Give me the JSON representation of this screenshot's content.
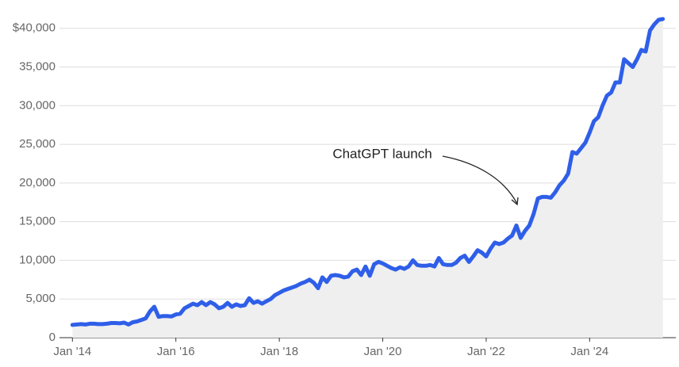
{
  "chart_data": {
    "type": "line",
    "annotation": "ChatGPT launch",
    "x": [
      "2014-01",
      "2014-02",
      "2014-03",
      "2014-04",
      "2014-05",
      "2014-06",
      "2014-07",
      "2014-08",
      "2014-09",
      "2014-10",
      "2014-11",
      "2014-12",
      "2015-01",
      "2015-02",
      "2015-03",
      "2015-04",
      "2015-05",
      "2015-06",
      "2015-07",
      "2015-08",
      "2015-09",
      "2015-10",
      "2015-11",
      "2015-12",
      "2016-01",
      "2016-02",
      "2016-03",
      "2016-04",
      "2016-05",
      "2016-06",
      "2016-07",
      "2016-08",
      "2016-09",
      "2016-10",
      "2016-11",
      "2016-12",
      "2017-01",
      "2017-02",
      "2017-03",
      "2017-04",
      "2017-05",
      "2017-06",
      "2017-07",
      "2017-08",
      "2017-09",
      "2017-10",
      "2017-11",
      "2017-12",
      "2018-01",
      "2018-02",
      "2018-03",
      "2018-04",
      "2018-05",
      "2018-06",
      "2018-07",
      "2018-08",
      "2018-09",
      "2018-10",
      "2018-11",
      "2018-12",
      "2019-01",
      "2019-02",
      "2019-03",
      "2019-04",
      "2019-05",
      "2019-06",
      "2019-07",
      "2019-08",
      "2019-09",
      "2019-10",
      "2019-11",
      "2019-12",
      "2020-01",
      "2020-02",
      "2020-03",
      "2020-04",
      "2020-05",
      "2020-06",
      "2020-07",
      "2020-08",
      "2020-09",
      "2020-10",
      "2020-11",
      "2020-12",
      "2021-01",
      "2021-02",
      "2021-03",
      "2021-04",
      "2021-05",
      "2021-06",
      "2021-07",
      "2021-08",
      "2021-09",
      "2021-10",
      "2021-11",
      "2021-12",
      "2022-01",
      "2022-02",
      "2022-03",
      "2022-04",
      "2022-05",
      "2022-06",
      "2022-07",
      "2022-08",
      "2022-09",
      "2022-10",
      "2022-11",
      "2022-12",
      "2023-01",
      "2023-02",
      "2023-03",
      "2023-04",
      "2023-05",
      "2023-06",
      "2023-07",
      "2023-08",
      "2023-09",
      "2023-10",
      "2023-11",
      "2023-12",
      "2024-01",
      "2024-02",
      "2024-03",
      "2024-04",
      "2024-05",
      "2024-06",
      "2024-07",
      "2024-08",
      "2024-09",
      "2024-10",
      "2024-11",
      "2024-12",
      "2025-01",
      "2025-02",
      "2025-03",
      "2025-04",
      "2025-05",
      "2025-06"
    ],
    "series": [
      {
        "color": "#2f5fe8",
        "fill": "#efefef",
        "values": [
          1650,
          1700,
          1750,
          1700,
          1800,
          1800,
          1750,
          1750,
          1800,
          1900,
          1900,
          1850,
          1950,
          1700,
          2000,
          2100,
          2300,
          2500,
          3400,
          4000,
          2700,
          2800,
          2800,
          2750,
          3000,
          3100,
          3800,
          4100,
          4400,
          4200,
          4600,
          4200,
          4600,
          4300,
          3800,
          4000,
          4500,
          4000,
          4300,
          4100,
          4200,
          5100,
          4500,
          4700,
          4400,
          4700,
          5000,
          5500,
          5800,
          6100,
          6300,
          6500,
          6700,
          7000,
          7200,
          7500,
          7100,
          6400,
          7800,
          7200,
          8000,
          8100,
          8000,
          7800,
          7900,
          8600,
          8800,
          8100,
          9200,
          8000,
          9500,
          9800,
          9600,
          9300,
          9000,
          8800,
          9100,
          8900,
          9200,
          10000,
          9400,
          9300,
          9300,
          9400,
          9200,
          10300,
          9500,
          9400,
          9400,
          9700,
          10300,
          10600,
          9800,
          10500,
          11300,
          11000,
          10500,
          11500,
          12300,
          12100,
          12300,
          12800,
          13200,
          14500,
          12900,
          13800,
          14500,
          16000,
          18000,
          18200,
          18200,
          18100,
          18800,
          19700,
          20300,
          21200,
          24000,
          23800,
          24500,
          25200,
          26500,
          28000,
          28500,
          30000,
          31300,
          31700,
          33000,
          33000,
          36000,
          35500,
          35000,
          36000,
          37200,
          37000,
          39700,
          40500,
          41100,
          41200
        ]
      }
    ],
    "xlim": [
      "2013-10",
      "2025-09"
    ],
    "xticks": [
      {
        "value": "2014-01",
        "label": "Jan '14"
      },
      {
        "value": "2016-01",
        "label": "Jan '16"
      },
      {
        "value": "2018-01",
        "label": "Jan '18"
      },
      {
        "value": "2020-01",
        "label": "Jan '20"
      },
      {
        "value": "2022-01",
        "label": "Jan '22"
      },
      {
        "value": "2024-01",
        "label": "Jan '24"
      }
    ],
    "ylim": [
      0,
      41000
    ],
    "yticks": [
      0,
      {
        "value": 5000,
        "label": "5,000"
      },
      {
        "value": 10000,
        "label": "10,000"
      },
      {
        "value": 15000,
        "label": "15,000"
      },
      {
        "value": 20000,
        "label": "20,000"
      },
      {
        "value": 25000,
        "label": "25,000"
      },
      {
        "value": 30000,
        "label": "30,000"
      },
      {
        "value": 35000,
        "label": "35,000"
      },
      {
        "value": 40000,
        "label": "$40,000"
      }
    ],
    "grid": true
  }
}
